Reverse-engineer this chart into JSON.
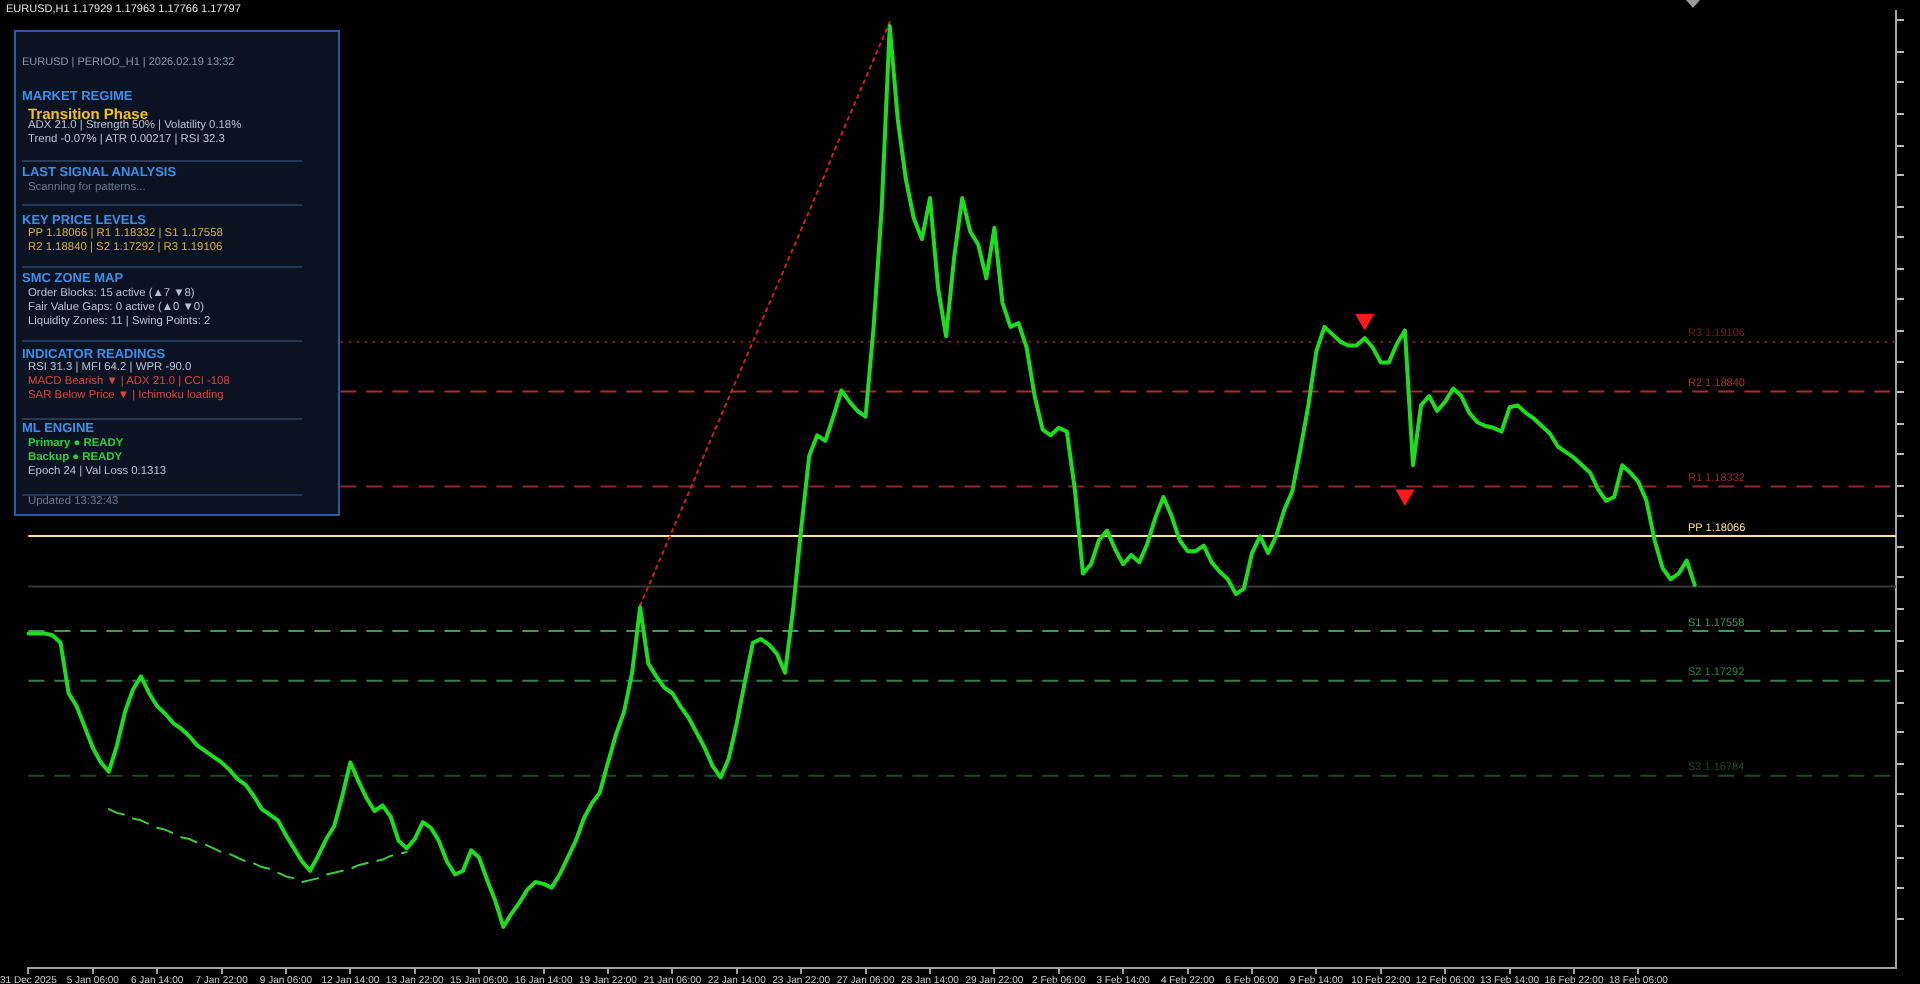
{
  "chart_data": [
    {
      "type": "line",
      "title": "EURUSD,H1 1.17929 1.17963 1.17766 1.17797",
      "categories": [
        "31 Dec 2025",
        null,
        null,
        null,
        null,
        null,
        null,
        null,
        "5 Jan 06:00",
        null,
        null,
        null,
        null,
        null,
        null,
        null,
        "6 Jan 14:00",
        null,
        null,
        null,
        null,
        null,
        null,
        null,
        "7 Jan 22:00",
        null,
        null,
        null,
        null,
        null,
        null,
        null,
        "9 Jan 06:00",
        null,
        null,
        null,
        null,
        null,
        null,
        null,
        "12 Jan 14:00",
        null,
        null,
        null,
        null,
        null,
        null,
        null,
        "13 Jan 22:00",
        null,
        null,
        null,
        null,
        null,
        null,
        null,
        "15 Jan 06:00",
        null,
        null,
        null,
        null,
        null,
        null,
        null,
        "16 Jan 14:00",
        null,
        null,
        null,
        null,
        null,
        null,
        null,
        "19 Jan 22:00",
        null,
        null,
        null,
        null,
        null,
        null,
        null,
        "21 Jan 06:00",
        null,
        null,
        null,
        null,
        null,
        null,
        null,
        "22 Jan 14:00",
        null,
        null,
        null,
        null,
        null,
        null,
        null,
        "23 Jan 22:00",
        null,
        null,
        null,
        null,
        null,
        null,
        null,
        "27 Jan 06:00",
        null,
        null,
        null,
        null,
        null,
        null,
        null,
        "28 Jan 14:00",
        null,
        null,
        null,
        null,
        null,
        null,
        null,
        "29 Jan 22:00",
        null,
        null,
        null,
        null,
        null,
        null,
        null,
        "2 Feb 06:00",
        null,
        null,
        null,
        null,
        null,
        null,
        null,
        "3 Feb 14:00",
        null,
        null,
        null,
        null,
        null,
        null,
        null,
        "4 Feb 22:00",
        null,
        null,
        null,
        null,
        null,
        null,
        null,
        "6 Feb 06:00",
        null,
        null,
        null,
        null,
        null,
        null,
        null,
        "9 Feb 14:00",
        null,
        null,
        null,
        null,
        null,
        null,
        null,
        "10 Feb 22:00",
        null,
        null,
        null,
        null,
        null,
        null,
        null,
        "12 Feb 06:00",
        null,
        null,
        null,
        null,
        null,
        null,
        null,
        "13 Feb 14:00",
        null,
        null,
        null,
        null,
        null,
        null,
        null,
        "16 Feb 22:00",
        null,
        null,
        null,
        null,
        null,
        null,
        null,
        "18 Feb 06:00",
        null,
        null,
        null,
        null,
        null,
        null,
        null,
        null,
        null,
        null,
        null,
        null,
        null,
        null,
        null,
        null,
        null,
        null,
        null,
        null,
        null,
        null,
        null,
        null,
        null,
        null,
        null,
        null,
        null,
        null,
        null,
        null
      ],
      "ylim": [
        1.1575,
        1.2087
      ],
      "yticks": [
        {
          "value": 1.2082,
          "label": null
        },
        {
          "value": 1.2065,
          "label": null
        },
        {
          "value": 1.2049,
          "label": null
        },
        {
          "value": 1.2032,
          "label": null
        },
        {
          "value": 1.2015,
          "label": null
        },
        {
          "value": 1.1999,
          "label": null
        },
        {
          "value": 1.1982,
          "label": null
        },
        {
          "value": 1.1966,
          "label": null
        },
        {
          "value": 1.1949,
          "label": null
        },
        {
          "value": 1.1933,
          "label": null
        },
        {
          "value": 1.1916,
          "label": null
        },
        {
          "value": 1.1899,
          "label": null
        },
        {
          "value": 1.1883,
          "label": null
        },
        {
          "value": 1.1866,
          "label": null
        },
        {
          "value": 1.185,
          "label": null
        },
        {
          "value": 1.1833,
          "label": null
        },
        {
          "value": 1.1817,
          "label": null
        },
        {
          "value": 1.18,
          "label": null
        },
        {
          "value": 1.1784,
          "label": null
        },
        {
          "value": 1.1767,
          "label": null
        },
        {
          "value": 1.175,
          "label": null
        },
        {
          "value": 1.1734,
          "label": null
        },
        {
          "value": 1.1717,
          "label": null
        },
        {
          "value": 1.1701,
          "label": null
        },
        {
          "value": 1.1684,
          "label": null
        },
        {
          "value": 1.1668,
          "label": null
        },
        {
          "value": 1.1651,
          "label": null
        },
        {
          "value": 1.1634,
          "label": null
        },
        {
          "value": 1.1618,
          "label": null
        },
        {
          "value": 1.1601,
          "label": null
        }
      ],
      "grid": false,
      "legend": false,
      "series": [
        {
          "type": "line",
          "color": "#1edc1e",
          "values": [
            1.1754,
            1.1754,
            1.1754,
            1.1753,
            1.1749,
            1.1722,
            1.1715,
            1.1704,
            1.1693,
            1.1685,
            1.168,
            1.1694,
            1.1712,
            1.1724,
            1.1731,
            1.1722,
            1.1715,
            1.1711,
            1.1706,
            1.1703,
            1.1699,
            1.1694,
            1.1691,
            1.1688,
            1.1685,
            1.1681,
            1.1676,
            1.1673,
            1.1667,
            1.166,
            1.1657,
            1.1654,
            1.1646,
            1.1639,
            1.1632,
            1.1627,
            1.1635,
            1.1644,
            1.1651,
            1.1667,
            1.1685,
            1.1675,
            1.1666,
            1.1659,
            1.1662,
            1.1656,
            1.1643,
            1.1639,
            1.1644,
            1.1653,
            1.165,
            1.1643,
            1.1632,
            1.1625,
            1.1627,
            1.1638,
            1.1634,
            1.1622,
            1.1611,
            1.1597,
            1.1604,
            1.161,
            1.1617,
            1.1621,
            1.162,
            1.1618,
            1.1625,
            1.1634,
            1.1643,
            1.1655,
            1.1663,
            1.1669,
            1.1685,
            1.17,
            1.1712,
            1.1733,
            1.1768,
            1.1738,
            1.1731,
            1.1725,
            1.1722,
            1.1715,
            1.1709,
            1.1701,
            1.1693,
            1.1683,
            1.1677,
            1.1687,
            1.1706,
            1.1728,
            1.1749,
            1.1751,
            1.1748,
            1.1743,
            1.1733,
            1.1767,
            1.181,
            1.1849,
            1.186,
            1.1857,
            1.187,
            1.1884,
            1.1878,
            1.1873,
            1.187,
            1.1918,
            1.1981,
            1.2079,
            1.2029,
            1.1997,
            1.1976,
            1.1965,
            1.1987,
            1.1939,
            1.1913,
            1.1955,
            1.1987,
            1.1969,
            1.1962,
            1.1944,
            1.1971,
            1.1931,
            1.1918,
            1.192,
            1.1907,
            1.1881,
            1.1863,
            1.186,
            1.1864,
            1.1862,
            1.1831,
            1.1786,
            1.1791,
            1.1804,
            1.1809,
            1.1799,
            1.1791,
            1.1796,
            1.1792,
            1.1802,
            1.1816,
            1.1827,
            1.1817,
            1.1804,
            1.1798,
            1.1798,
            1.1801,
            1.1792,
            1.1787,
            1.1783,
            1.1775,
            1.1778,
            1.1797,
            1.1806,
            1.1797,
            1.1806,
            1.182,
            1.183,
            1.1852,
            1.1876,
            1.1905,
            1.1918,
            1.1914,
            1.191,
            1.1908,
            1.1908,
            1.1912,
            1.1907,
            1.1899,
            1.1899,
            1.1909,
            1.1916,
            1.1844,
            1.1876,
            1.1881,
            1.1873,
            1.1878,
            1.1885,
            1.1881,
            1.1872,
            1.1867,
            1.1865,
            1.1864,
            1.1862,
            1.1875,
            1.1876,
            1.1872,
            1.1869,
            1.1865,
            1.1861,
            1.1854,
            1.1851,
            1.1848,
            1.1844,
            1.184,
            1.1831,
            1.1825,
            1.1827,
            1.1844,
            1.184,
            1.1835,
            1.1825,
            1.1804,
            1.1789,
            1.1783,
            1.1786,
            1.1793,
            1.178,
            null,
            null,
            null,
            null,
            null,
            null,
            null,
            null,
            null,
            null,
            null,
            null,
            null,
            null,
            null,
            null,
            null,
            null,
            null,
            null,
            null,
            null,
            null,
            null,
            null
          ]
        },
        {
          "type": "line",
          "color": "#d02020",
          "line_style": "dotted",
          "values": [
            null,
            null,
            null,
            null,
            null,
            null,
            null,
            null,
            null,
            null,
            null,
            null,
            null,
            null,
            null,
            null,
            null,
            null,
            null,
            null,
            null,
            null,
            null,
            null,
            null,
            null,
            null,
            null,
            null,
            null,
            null,
            null,
            null,
            null,
            null,
            null,
            null,
            null,
            null,
            null,
            null,
            null,
            null,
            null,
            null,
            null,
            null,
            null,
            null,
            null,
            null,
            null,
            null,
            null,
            null,
            null,
            null,
            null,
            null,
            null,
            null,
            null,
            null,
            null,
            null,
            null,
            null,
            null,
            null,
            null,
            null,
            null,
            null,
            null,
            null,
            null,
            1.1769,
            1.1779,
            1.1789,
            1.1799,
            1.1809,
            1.1819,
            1.1829,
            1.1839,
            1.185,
            1.186,
            1.187,
            1.188,
            1.189,
            1.19,
            1.191,
            1.192,
            1.193,
            1.194,
            1.195,
            1.196,
            1.197,
            1.198,
            1.199,
            1.2,
            1.2011,
            1.2021,
            1.2031,
            1.2041,
            1.2051,
            1.2061,
            1.2071,
            1.2081,
            null,
            null,
            null,
            null,
            null,
            null,
            null,
            null,
            null,
            null,
            null,
            null,
            null,
            null,
            null,
            null,
            null,
            null,
            null,
            null,
            null,
            null,
            null,
            null,
            null,
            null,
            null,
            null,
            null,
            null,
            null,
            null,
            null,
            null,
            null,
            null,
            null,
            null,
            null,
            null,
            null,
            null,
            null,
            null,
            null,
            null,
            null,
            null,
            null,
            null,
            null,
            null,
            null,
            null,
            null,
            null,
            null,
            null,
            null,
            null,
            null,
            null,
            null,
            null,
            null,
            null,
            null,
            null,
            null,
            null,
            null,
            null,
            null,
            null,
            null,
            null,
            null,
            null,
            null,
            null,
            null,
            null,
            null,
            null,
            null,
            null,
            null,
            null,
            null,
            null,
            null,
            null,
            null,
            null,
            null,
            null,
            null,
            null,
            null,
            null,
            null,
            null,
            null,
            null,
            null,
            null,
            null,
            null,
            null,
            null,
            null,
            null,
            null,
            null,
            null,
            null,
            null,
            null,
            null,
            null,
            null,
            null,
            null,
            null,
            null
          ]
        },
        {
          "type": "line",
          "color": "#3ccc3c",
          "line_style": "dashed",
          "values": [
            null,
            null,
            null,
            null,
            null,
            null,
            null,
            null,
            null,
            null,
            1.166,
            1.1658,
            1.1657,
            1.1655,
            1.1654,
            1.1652,
            1.165,
            1.1649,
            1.1647,
            1.1645,
            1.1644,
            1.1642,
            1.1641,
            1.1639,
            1.1637,
            1.1636,
            1.1634,
            1.1632,
            1.1631,
            1.1629,
            1.1628,
            1.1626,
            1.1624,
            1.1623,
            1.1621,
            1.1622,
            1.1623,
            1.1625,
            1.1626,
            1.1627,
            1.1628,
            1.163,
            1.1631,
            1.1632,
            1.1633,
            1.1635,
            1.1636,
            1.1637,
            null,
            null,
            null,
            null,
            null,
            null,
            null,
            null,
            null,
            null,
            null,
            null,
            null,
            null,
            null,
            null,
            null,
            null,
            null,
            null,
            null,
            null,
            null,
            null,
            null,
            null,
            null,
            null,
            null,
            null,
            null,
            null,
            null,
            null,
            null,
            null,
            null,
            null,
            null,
            null,
            null,
            null,
            null,
            null,
            null,
            null,
            null,
            null,
            null,
            null,
            null,
            null,
            null,
            null,
            null,
            null,
            null,
            null,
            null,
            null,
            null,
            null,
            null,
            null,
            null,
            null,
            null,
            null,
            null,
            null,
            null,
            null,
            null,
            null,
            null,
            null,
            null,
            null,
            null,
            null,
            null,
            null,
            null,
            null,
            null,
            null,
            null,
            null,
            null,
            null,
            null,
            null,
            null,
            null,
            null,
            null,
            null,
            null,
            null,
            null,
            null,
            null,
            null,
            null,
            null,
            null,
            null,
            null,
            null,
            null,
            null,
            null,
            null,
            null,
            null,
            null,
            null,
            null,
            null,
            null,
            null,
            null,
            null,
            null,
            null,
            null,
            null,
            null,
            null,
            null,
            null,
            null,
            null,
            null,
            null,
            null,
            null,
            null,
            null,
            null,
            null,
            null,
            null,
            null,
            null,
            null,
            null,
            null,
            null,
            null,
            null,
            null,
            null,
            null,
            null,
            null,
            null,
            null,
            null,
            null,
            null,
            null,
            null,
            null,
            null,
            null,
            null,
            null,
            null,
            null,
            null,
            null,
            null,
            null,
            null,
            null,
            null,
            null,
            null,
            null,
            null,
            null,
            null,
            null,
            null
          ]
        },
        {
          "type": "scatter",
          "color": "#ff1a1a",
          "marker": "triangle",
          "values": [
            null,
            null,
            null,
            null,
            null,
            null,
            null,
            null,
            null,
            null,
            null,
            null,
            null,
            null,
            null,
            null,
            null,
            null,
            null,
            null,
            null,
            null,
            null,
            null,
            null,
            null,
            null,
            null,
            null,
            null,
            null,
            null,
            null,
            null,
            null,
            null,
            null,
            null,
            null,
            null,
            null,
            null,
            null,
            null,
            null,
            null,
            null,
            null,
            null,
            null,
            null,
            null,
            null,
            null,
            null,
            null,
            null,
            null,
            null,
            null,
            null,
            null,
            null,
            null,
            null,
            null,
            null,
            null,
            null,
            null,
            null,
            null,
            null,
            null,
            null,
            null,
            null,
            null,
            null,
            null,
            null,
            null,
            null,
            null,
            null,
            null,
            null,
            null,
            null,
            null,
            null,
            null,
            null,
            null,
            null,
            null,
            null,
            null,
            null,
            null,
            null,
            null,
            null,
            null,
            null,
            null,
            null,
            null,
            null,
            null,
            null,
            null,
            null,
            null,
            null,
            null,
            null,
            null,
            null,
            null,
            null,
            null,
            null,
            null,
            null,
            null,
            null,
            null,
            null,
            null,
            null,
            null,
            null,
            null,
            null,
            null,
            null,
            null,
            null,
            null,
            null,
            null,
            null,
            null,
            null,
            null,
            null,
            null,
            null,
            null,
            null,
            null,
            null,
            null,
            null,
            null,
            null,
            null,
            null,
            null,
            null,
            null,
            null,
            null,
            null,
            null,
            1.1922,
            null,
            null,
            null,
            null,
            1.1828,
            null,
            null,
            null,
            null,
            null,
            null,
            null,
            null,
            null,
            null,
            null,
            null,
            null,
            null,
            null,
            null,
            null,
            null,
            null,
            null,
            null,
            null,
            null,
            null,
            null,
            null,
            null,
            null,
            null,
            null,
            null,
            null,
            null,
            null,
            null,
            null,
            null,
            null,
            null,
            null,
            null,
            null,
            null,
            null,
            null,
            null,
            null,
            null,
            null,
            null,
            null,
            null,
            null,
            null,
            null,
            null,
            null,
            null,
            null,
            null,
            null
          ]
        }
      ],
      "ref_lines": [
        {
          "axis": "y",
          "value": 1.19106,
          "label": "R3 1.19106",
          "color": "#7a1c1c",
          "line_style": "dotted"
        },
        {
          "axis": "y",
          "value": 1.1884,
          "label": "R2 1.18840",
          "color": "#b02a2a",
          "line_style": "dashed"
        },
        {
          "axis": "y",
          "value": 1.18332,
          "label": "R1 1.18332",
          "color": "#962626",
          "line_style": "dashed"
        },
        {
          "axis": "y",
          "value": 1.18066,
          "label": "PP 1.18066",
          "color": "#ffe08a",
          "line_style": "solid"
        },
        {
          "axis": "y",
          "value": 1.17797,
          "color": "#3a3a3a",
          "line_style": "solid"
        },
        {
          "axis": "y",
          "value": 1.17558,
          "label": "S1 1.17558",
          "color": "#3f9a55",
          "line_style": "dashed"
        },
        {
          "axis": "y",
          "value": 1.17292,
          "label": "S2 1.17292",
          "color": "#358046",
          "line_style": "dashed"
        },
        {
          "axis": "y",
          "value": 1.16784,
          "label": "S3 1.16784",
          "color": "#1c4a24",
          "line_style": "dashed"
        }
      ]
    },
    {
      "type": "other",
      "annotations": [
        "EURUSD | PERIOD_H1 | 2026.02.19 13:32",
        "MARKET REGIME",
        "Transition Phase",
        "ADX 21.0 | Strength 50% | Volatility 0.18%",
        "Trend -0.07% | ATR 0.00217 | RSI 32.3",
        "LAST SIGNAL ANALYSIS",
        "Scanning for patterns...",
        "KEY PRICE LEVELS",
        "PP 1.18066 | R1 1.18332 | S1 1.17558",
        "R2 1.18840 | S2 1.17292 | R3 1.19106",
        "SMC ZONE MAP",
        "Order Blocks: 15 active (▲7 ▼8)",
        "Fair Value Gaps: 0 active (▲0 ▼0)",
        "Liquidity Zones: 11 | Swing Points: 2",
        "INDICATOR READINGS",
        "RSI 31.3 | MFI 64.2 | WPR -90.0",
        "MACD Bearish ▼ | ADX 21.0 | CCI -108",
        "SAR Below Price ▼ | Ichimoku loading",
        "ML ENGINE",
        "Primary ● READY",
        "Backup ● READY",
        "Epoch 24 | Val Loss 0.1313",
        "Updated 13:32:43"
      ]
    }
  ]
}
